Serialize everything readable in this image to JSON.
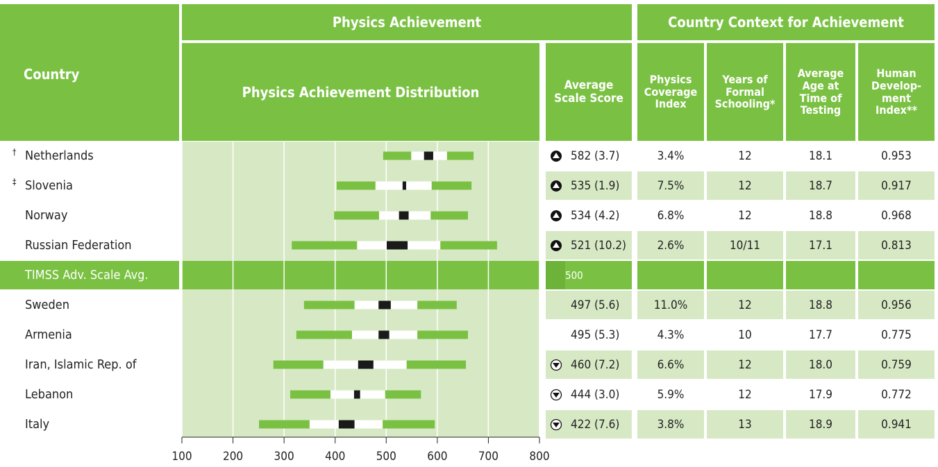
{
  "header": {
    "country": "Country",
    "physics_achievement": "Physics Achievement",
    "distribution": "Physics Achievement Distribution",
    "average": "Average Scale Score",
    "context": "Country Context for Achievement",
    "columns": [
      "Physics Coverage Index",
      "Years of Formal Schooling*",
      "Average Age at Time of Testing",
      "Human Develop-ment Index**"
    ]
  },
  "axis": {
    "xlim": [
      100,
      800
    ],
    "xticks": [
      100,
      200,
      300,
      400,
      500,
      600,
      700,
      800
    ],
    "grid": true
  },
  "rows": [
    {
      "mark": "†",
      "country": "Netherlands",
      "distribution": [
        494,
        549,
        574,
        592,
        619,
        671
      ],
      "trend": "up",
      "score": "582 (3.7)",
      "context": [
        "3.4%",
        "12",
        "18.1",
        "0.953"
      ]
    },
    {
      "mark": "‡",
      "country": "Slovenia",
      "distribution": [
        403,
        479,
        532,
        539,
        589,
        667
      ],
      "trend": "up",
      "score": "535 (1.9)",
      "context": [
        "7.5%",
        "12",
        "18.7",
        "0.917"
      ]
    },
    {
      "country": "Norway",
      "distribution": [
        398,
        486,
        525,
        544,
        587,
        660
      ],
      "trend": "up",
      "score": "534 (4.2)",
      "context": [
        "6.8%",
        "12",
        "18.8",
        "0.968"
      ]
    },
    {
      "country": "Russian Federation",
      "distribution": [
        315,
        443,
        501,
        542,
        606,
        717
      ],
      "trend": "up",
      "score": "521 (10.2)",
      "context": [
        "2.6%",
        "10/11",
        "17.1",
        "0.813"
      ]
    },
    {
      "country": "TIMSS Adv. Scale Avg.",
      "score": "500"
    },
    {
      "country": "Sweden",
      "distribution": [
        339,
        438,
        485,
        509,
        561,
        638
      ],
      "score": "497 (5.6)",
      "context": [
        "11.0%",
        "12",
        "18.8",
        "0.956"
      ]
    },
    {
      "country": "Armenia",
      "distribution": [
        324,
        433,
        485,
        506,
        561,
        660
      ],
      "score": "495 (5.3)",
      "context": [
        "4.3%",
        "10",
        "17.7",
        "0.775"
      ]
    },
    {
      "country": "Iran, Islamic Rep. of",
      "distribution": [
        279,
        377,
        445,
        475,
        540,
        656
      ],
      "trend": "down",
      "score": "460 (7.2)",
      "context": [
        "6.6%",
        "12",
        "18.0",
        "0.759"
      ]
    },
    {
      "country": "Lebanon",
      "distribution": [
        312,
        391,
        437,
        449,
        498,
        568
      ],
      "trend": "down",
      "score": "444 (3.0)",
      "context": [
        "5.9%",
        "12",
        "17.9",
        "0.772"
      ]
    },
    {
      "country": "Italy",
      "distribution": [
        251,
        350,
        407,
        438,
        493,
        595
      ],
      "trend": "down",
      "score": "422 (7.6)",
      "context": [
        "3.8%",
        "13",
        "18.9",
        "0.941"
      ]
    }
  ]
}
